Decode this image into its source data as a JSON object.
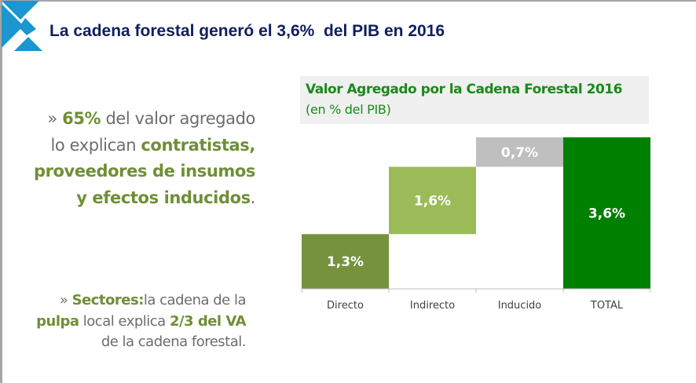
{
  "header": {
    "title": "La cadena forestal generó el 3,6%  del PIB en 2016"
  },
  "bullets": [
    {
      "marker": "» ",
      "parts": [
        {
          "text": "65%",
          "bold": true
        },
        {
          "text": " del valor agregado lo explican ",
          "bold": false
        },
        {
          "text": "contratistas, proveedores  de insumos y efectos inducidos",
          "bold": true
        },
        {
          "text": ".",
          "bold": false
        }
      ]
    },
    {
      "marker": "» ",
      "parts": [
        {
          "text": "Sectores:",
          "bold": true
        },
        {
          "text": "la cadena de la ",
          "bold": false
        },
        {
          "text": "pulpa",
          "bold": true
        },
        {
          "text": " local explica ",
          "bold": false
        },
        {
          "text": "2/3 del VA",
          "bold": true
        },
        {
          "text": " de la cadena forestal.",
          "bold": false
        }
      ]
    }
  ],
  "chart_data": {
    "type": "waterfall",
    "title": "Valor Agregado por la Cadena Forestal 2016",
    "subtitle": "(en % del PIB)",
    "categories": [
      "Directo",
      "Indirecto",
      "Inducido",
      "TOTAL"
    ],
    "values": [
      1.3,
      1.6,
      0.7,
      3.6
    ],
    "labels": [
      "1,3%",
      "1,6%",
      "0,7%",
      "3,6%"
    ],
    "is_total": [
      false,
      false,
      false,
      true
    ],
    "colors": [
      "#76923c",
      "#9bbb59",
      "#bfbfbf",
      "#008000"
    ],
    "ylim": [
      0,
      3.6
    ],
    "grid": false
  }
}
